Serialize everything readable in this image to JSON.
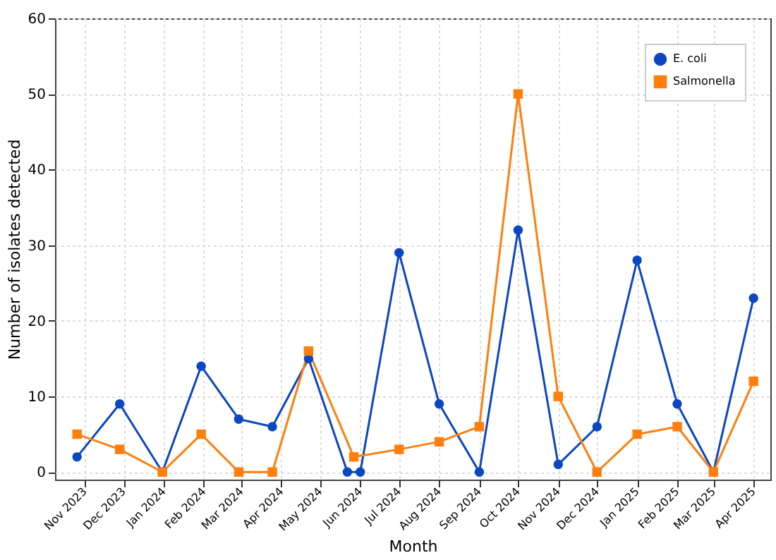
{
  "chart_data": {
    "type": "line",
    "xlabel": "Month",
    "ylabel": "Number of isolates detected",
    "xlim": [
      "2023-10-09",
      "2025-04-14"
    ],
    "ylim": [
      -1,
      60
    ],
    "yticks": [
      0,
      10,
      20,
      30,
      40,
      50,
      60
    ],
    "xticks": [
      {
        "value": "2023-11-01",
        "label": "Nov 2023"
      },
      {
        "value": "2023-12-01",
        "label": "Dec 2023"
      },
      {
        "value": "2024-01-01",
        "label": "Jan 2024"
      },
      {
        "value": "2024-02-01",
        "label": "Feb 2024"
      },
      {
        "value": "2024-03-01",
        "label": "Mar 2024"
      },
      {
        "value": "2024-04-01",
        "label": "Apr 2024"
      },
      {
        "value": "2024-05-01",
        "label": "May 2024"
      },
      {
        "value": "2024-06-01",
        "label": "Jun 2024"
      },
      {
        "value": "2024-07-01",
        "label": "Jul 2024"
      },
      {
        "value": "2024-08-01",
        "label": "Aug 2024"
      },
      {
        "value": "2024-09-01",
        "label": "Sep 2024"
      },
      {
        "value": "2024-10-01",
        "label": "Oct 2024"
      },
      {
        "value": "2024-11-01",
        "label": "Nov 2024"
      },
      {
        "value": "2024-12-01",
        "label": "Dec 2024"
      },
      {
        "value": "2025-01-01",
        "label": "Jan 2025"
      },
      {
        "value": "2025-02-01",
        "label": "Feb 2025"
      },
      {
        "value": "2025-03-01",
        "label": "Mar 2025"
      },
      {
        "value": "2025-04-01",
        "label": "Apr 2025"
      }
    ],
    "grid": true,
    "legend": "top right",
    "line_style": "solid",
    "series": [
      {
        "name": "E. coli",
        "color": "#0b47c1",
        "marker": "circle",
        "x": [
          "2023-10-26",
          "2023-11-28",
          "2023-12-31",
          "2024-01-30",
          "2024-02-28",
          "2024-03-25",
          "2024-04-22",
          "2024-05-22",
          "2024-06-01",
          "2024-07-01",
          "2024-08-01",
          "2024-09-01",
          "2024-10-01",
          "2024-11-01",
          "2024-12-01",
          "2025-01-01",
          "2025-02-01",
          "2025-03-01",
          "2025-04-01"
        ],
        "values": [
          2,
          9,
          0,
          14,
          7,
          6,
          15,
          0,
          0,
          29,
          9,
          0,
          32,
          1,
          6,
          28,
          9,
          0,
          23
        ]
      },
      {
        "name": "Salmonella",
        "color": "#ff7f0e",
        "marker": "square",
        "x": [
          "2023-10-26",
          "2023-11-28",
          "2023-12-31",
          "2024-01-30",
          "2024-02-28",
          "2024-03-25",
          "2024-04-22",
          "2024-05-27",
          "2024-07-01",
          "2024-08-01",
          "2024-09-01",
          "2024-10-01",
          "2024-11-01",
          "2024-12-01",
          "2025-01-01",
          "2025-02-01",
          "2025-03-01",
          "2025-04-01"
        ],
        "values": [
          5,
          3,
          0,
          5,
          0,
          0,
          16,
          2,
          3,
          4,
          6,
          50,
          10,
          0,
          5,
          6,
          0,
          12
        ]
      }
    ]
  }
}
